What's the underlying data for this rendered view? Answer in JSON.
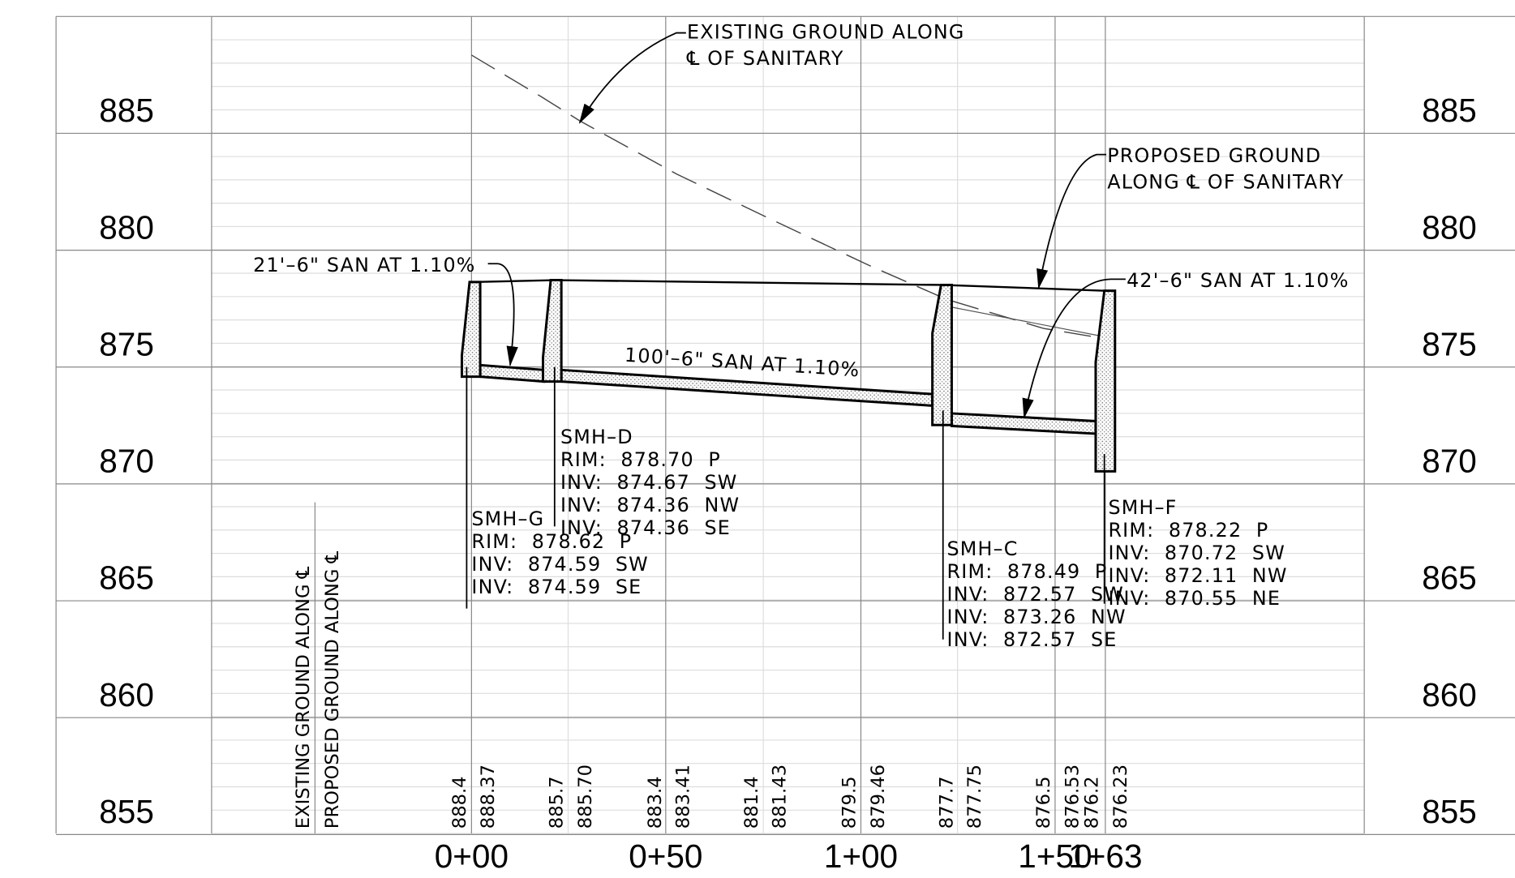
{
  "elevations": [
    "885",
    "880",
    "875",
    "870",
    "865",
    "860",
    "855"
  ],
  "stations": [
    "0+00",
    "0+50",
    "1+00",
    "1+50",
    "1+63"
  ],
  "ground_legend": {
    "existing": "EXISTING GROUND ALONG ℄",
    "proposed": "PROPOSED GROUND ALONG ℄"
  },
  "ground_elevations": [
    {
      "existing": "888.4",
      "proposed": "888.37"
    },
    {
      "existing": "885.7",
      "proposed": "885.70"
    },
    {
      "existing": "883.4",
      "proposed": "883.41"
    },
    {
      "existing": "881.4",
      "proposed": "881.43"
    },
    {
      "existing": "879.5",
      "proposed": "879.46"
    },
    {
      "existing": "877.7",
      "proposed": "877.75"
    },
    {
      "existing": "876.5",
      "proposed": "876.53"
    },
    {
      "existing": "876.2",
      "proposed": "876.23"
    }
  ],
  "callouts": {
    "existing_ground": [
      "EXISTING GROUND ALONG",
      "℄ OF SANITARY"
    ],
    "proposed_ground": [
      "PROPOSED GROUND",
      "ALONG ℄ OF SANITARY"
    ]
  },
  "pipes": [
    "21'–6\" SAN AT 1.10%",
    "100'–6\" SAN AT 1.10%",
    "42'–6\" SAN AT 1.10%"
  ],
  "manholes": [
    {
      "name": "SMH–D",
      "lines": [
        "RIM:  878.70  P",
        "INV:  874.67  SW",
        "INV:  874.36  NW",
        "INV:  874.36  SE"
      ]
    },
    {
      "name": "SMH–G",
      "lines": [
        "RIM:  878.62  P",
        "INV:  874.59  SW",
        "INV:  874.59  SE"
      ]
    },
    {
      "name": "SMH–C",
      "lines": [
        "RIM:  878.49  P",
        "INV:  872.57  SW",
        "INV:  873.26  NW",
        "INV:  872.57  SE"
      ]
    },
    {
      "name": "SMH–F",
      "lines": [
        "RIM:  878.22  P",
        "INV:  870.72  SW",
        "INV:  872.11  NW",
        "INV:  870.55  NE"
      ]
    }
  ]
}
